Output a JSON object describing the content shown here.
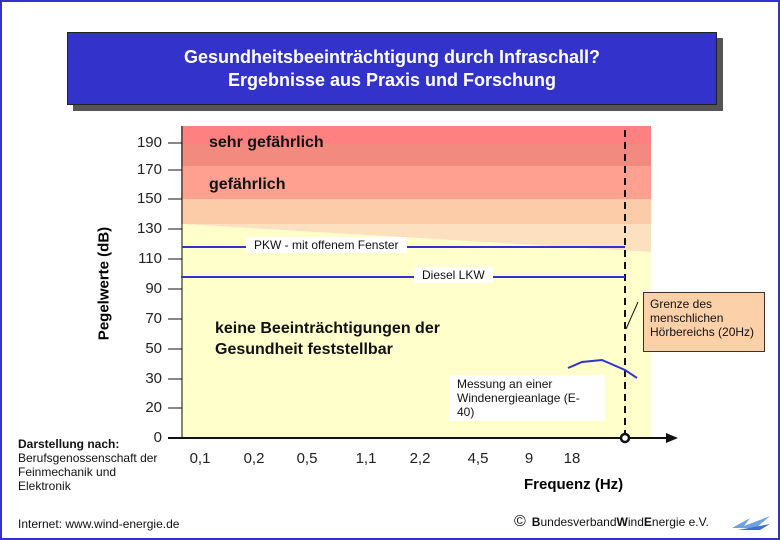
{
  "title": {
    "line1": "Gesundheitsbeeinträchtigung durch Infraschall?",
    "line2": "Ergebnisse aus Praxis und Forschung"
  },
  "chart_data": {
    "type": "line",
    "ylabel": "Pegelwerte (dB)",
    "xlabel": "Frequenz (Hz)",
    "y_ticks": [
      "190",
      "170",
      "150",
      "130",
      "110",
      "90",
      "70",
      "50",
      "30",
      "20",
      "0"
    ],
    "x_ticks": [
      "0,1",
      "0,2",
      "0,5",
      "1,1",
      "2,2",
      "4,5",
      "9",
      "18"
    ],
    "zones": [
      {
        "label": "sehr gefährlich",
        "color": "#ff8080"
      },
      {
        "label": "gefährlich",
        "color": "#ffa090"
      },
      {
        "label": "keine Beeinträchtigungen der Gesundheit feststellbar",
        "color": "#ffffcc"
      }
    ],
    "series": [
      {
        "name": "PKW - mit offenem Fenster",
        "level_db": 115,
        "color": "#3333cc"
      },
      {
        "name": "Diesel LKW",
        "level_db": 95,
        "color": "#3333cc"
      },
      {
        "name": "Messung an einer Windenergieanlage (E-40)",
        "color": "#3333cc",
        "values_db": [
          43,
          46,
          48,
          40,
          35
        ]
      }
    ],
    "annotation": "Grenze des menschlichen Hörbereichs (20Hz)"
  },
  "source": {
    "label": "Darstellung nach:",
    "text": [
      "Berufsgenossenschaft der",
      "Feinmechanik und",
      "Elektronik"
    ]
  },
  "footer": {
    "internet": "Internet: www.wind-energie.de",
    "copyright": "©",
    "org_b1": "B",
    "org_r1": "undesverband ",
    "org_b2": "W",
    "org_r2": "ind",
    "org_b3": "E",
    "org_r3": "nergie e.V."
  }
}
